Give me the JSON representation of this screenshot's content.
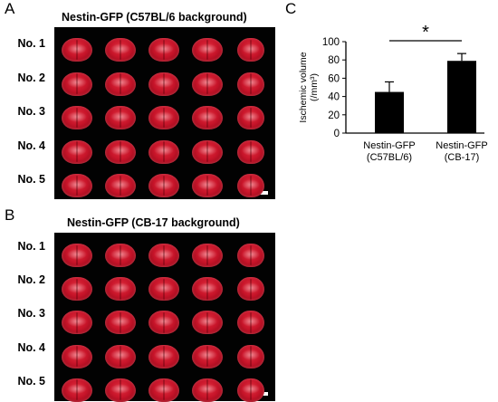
{
  "panels": {
    "a": {
      "letter": "A",
      "title": "Nestin-GFP (C57BL/6 background)",
      "rows": [
        "No. 1",
        "No. 2",
        "No. 3",
        "No. 4",
        "No. 5"
      ],
      "columns": 5
    },
    "b": {
      "letter": "B",
      "title": "Nestin-GFP (CB-17 background)",
      "rows": [
        "No. 1",
        "No. 2",
        "No. 3",
        "No. 4",
        "No. 5"
      ],
      "columns": 5
    },
    "c": {
      "letter": "C"
    }
  },
  "colors": {
    "photo_background": "#020202",
    "tissue_red": "#c8152a",
    "bar_fill": "#000000"
  },
  "chart_data": {
    "type": "bar",
    "categories": [
      "Nestin-GFP\n(C57BL/6)",
      "Nestin-GFP\n(CB-17)"
    ],
    "category_lines": [
      [
        "Nestin-GFP",
        "(C57BL/6)"
      ],
      [
        "Nestin-GFP",
        "(CB-17)"
      ]
    ],
    "values": [
      45,
      79
    ],
    "error_up": [
      11,
      8
    ],
    "ylabel_lines": [
      "Ischemic volume",
      "(/mm³)"
    ],
    "ylim": [
      0,
      100
    ],
    "yticks": [
      "0",
      "20",
      "40",
      "60",
      "80",
      "100"
    ],
    "significance": "*",
    "grid": false,
    "legend": "none"
  }
}
